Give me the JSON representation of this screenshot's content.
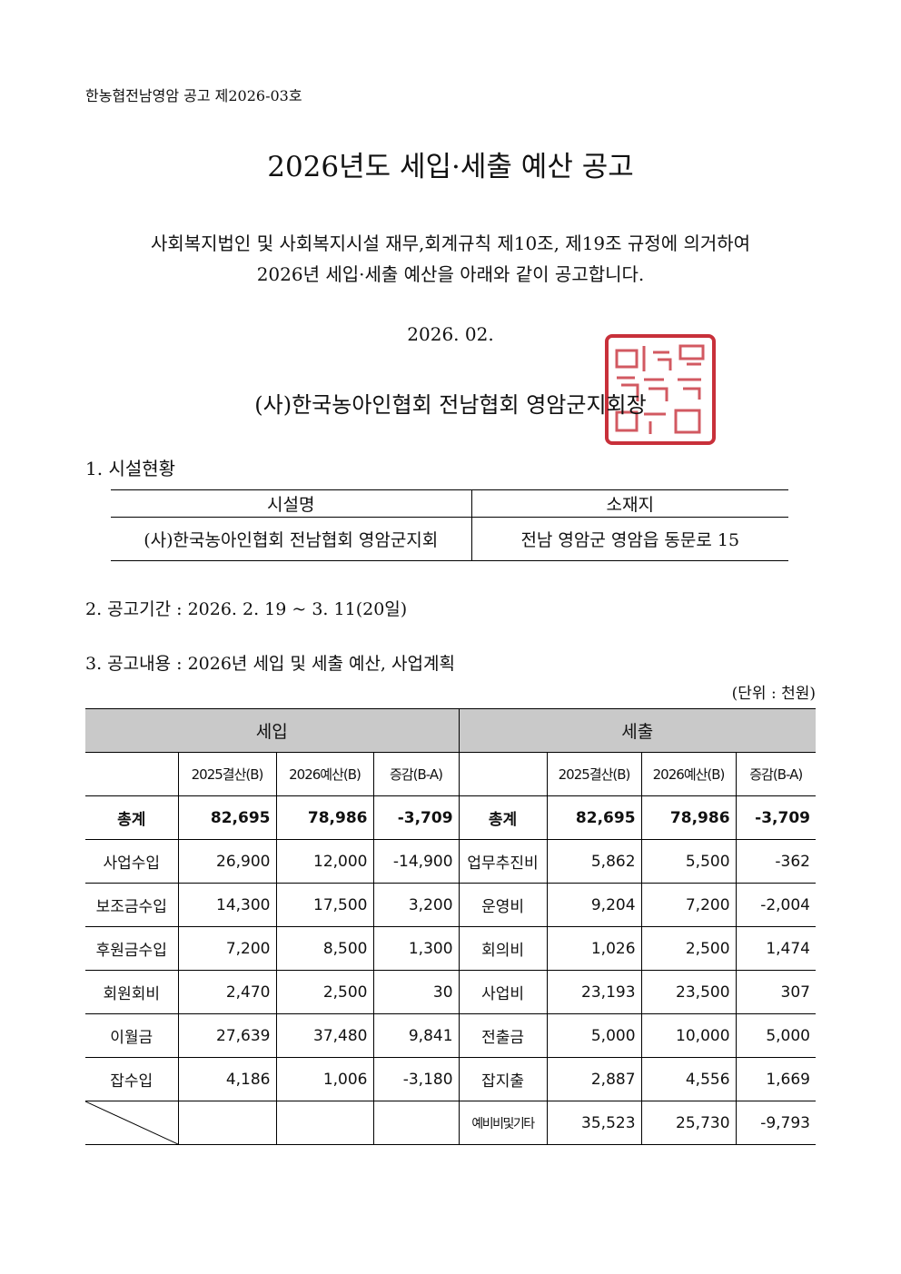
{
  "header": {
    "notice": "한농협전남영암 공고 제2026-03호"
  },
  "title": "2026년도 세입·세출 예산 공고",
  "body": [
    "사회복지법인 및 사회복지시설 재무,회계규칙 제10조, 제19조 규정에 의거하여",
    "2026년 세입·세출 예산을 아래와 같이 공고합니다."
  ],
  "date": "2026. 02.",
  "issuer": "(사)한국농아인협회 전남협회 영암군지회장",
  "section1": {
    "heading": "1. 시설현황",
    "headers": [
      "시설명",
      "소재지"
    ],
    "row": [
      "(사)한국농아인협회 전남협회 영암군지회",
      "전남 영암군 영암읍 동문로 15"
    ]
  },
  "section2": {
    "heading": "2. 공고기간 : 2026. 2. 19 ~ 3. 11(20일)"
  },
  "section3": {
    "heading": "3. 공고내용 : 2026년 세입 및 세출 예산, 사업계획",
    "unit": "(단위 : 천원)"
  },
  "budget": {
    "income": {
      "title": "세입",
      "columns": [
        "2025결산(B)",
        "2026예산(B)",
        "증감(B-A)"
      ],
      "rows": [
        [
          "총계",
          "82,695",
          "78,986",
          "-3,709"
        ],
        [
          "사업수입",
          "26,900",
          "12,000",
          "-14,900"
        ],
        [
          "보조금수입",
          "14,300",
          "17,500",
          "3,200"
        ],
        [
          "후원금수입",
          "7,200",
          "8,500",
          "1,300"
        ],
        [
          "회원회비",
          "2,470",
          "2,500",
          "30"
        ],
        [
          "이월금",
          "27,639",
          "37,480",
          "9,841"
        ],
        [
          "잡수입",
          "4,186",
          "1,006",
          "-3,180"
        ]
      ]
    },
    "expense": {
      "title": "세출",
      "columns": [
        "2025결산(B)",
        "2026예산(B)",
        "증감(B-A)"
      ],
      "rows": [
        [
          "총계",
          "82,695",
          "78,986",
          "-3,709"
        ],
        [
          "업무추진비",
          "5,862",
          "5,500",
          "-362"
        ],
        [
          "운영비",
          "9,204",
          "7,200",
          "-2,004"
        ],
        [
          "회의비",
          "1,026",
          "2,500",
          "1,474"
        ],
        [
          "사업비",
          "23,193",
          "23,500",
          "307"
        ],
        [
          "전출금",
          "5,000",
          "10,000",
          "5,000"
        ],
        [
          "잡지출",
          "2,887",
          "4,556",
          "1,669"
        ],
        [
          "예비비및기타",
          "35,523",
          "25,730",
          "-9,793"
        ]
      ]
    }
  }
}
